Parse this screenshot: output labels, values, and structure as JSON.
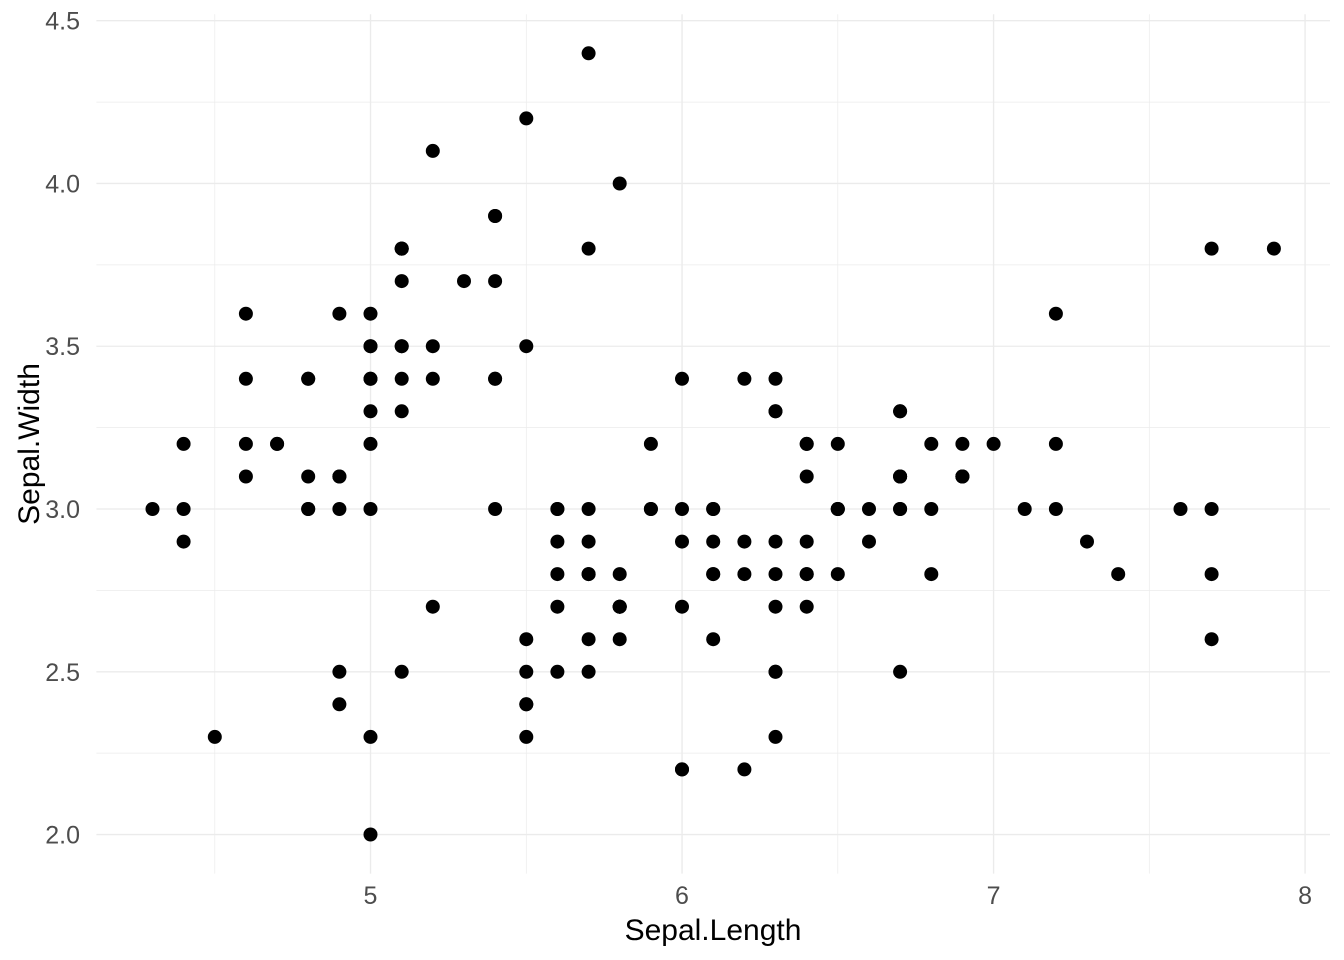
{
  "chart_data": {
    "type": "scatter",
    "title": "",
    "xlabel": "Sepal.Length",
    "ylabel": "Sepal.Width",
    "xlim": [
      4.12,
      8.08
    ],
    "ylim": [
      1.88,
      4.52
    ],
    "x_major_ticks": [
      5,
      6,
      7,
      8
    ],
    "x_tick_labels": [
      "5",
      "6",
      "7",
      "8"
    ],
    "y_major_ticks": [
      2.0,
      2.5,
      3.0,
      3.5,
      4.0,
      4.5
    ],
    "y_tick_labels": [
      "2.0",
      "2.5",
      "3.0",
      "3.5",
      "4.0",
      "4.5"
    ],
    "x_minor_ticks": [
      4.5,
      5.5,
      6.5,
      7.5
    ],
    "y_minor_ticks": [
      2.25,
      2.75,
      3.25,
      3.75,
      4.25
    ],
    "grid": "major+minor",
    "legend": "none",
    "style": {
      "background": "#FFFFFF",
      "grid_color": "#EBEBEB",
      "point_color": "#000000",
      "point_radius": 7,
      "axis_text_color": "#4D4D4D",
      "axis_title_color": "#000000"
    },
    "points": [
      [
        5.1,
        3.5
      ],
      [
        4.9,
        3.0
      ],
      [
        4.7,
        3.2
      ],
      [
        4.6,
        3.1
      ],
      [
        5.0,
        3.6
      ],
      [
        5.4,
        3.9
      ],
      [
        4.6,
        3.4
      ],
      [
        5.0,
        3.4
      ],
      [
        4.4,
        2.9
      ],
      [
        4.9,
        3.1
      ],
      [
        5.4,
        3.7
      ],
      [
        4.8,
        3.4
      ],
      [
        4.8,
        3.0
      ],
      [
        4.3,
        3.0
      ],
      [
        5.8,
        4.0
      ],
      [
        5.7,
        4.4
      ],
      [
        5.4,
        3.9
      ],
      [
        5.1,
        3.5
      ],
      [
        5.7,
        3.8
      ],
      [
        5.1,
        3.8
      ],
      [
        5.4,
        3.4
      ],
      [
        5.1,
        3.7
      ],
      [
        4.6,
        3.6
      ],
      [
        5.1,
        3.3
      ],
      [
        4.8,
        3.4
      ],
      [
        5.0,
        3.0
      ],
      [
        5.0,
        3.4
      ],
      [
        5.2,
        3.5
      ],
      [
        5.2,
        3.4
      ],
      [
        4.7,
        3.2
      ],
      [
        4.8,
        3.1
      ],
      [
        5.4,
        3.4
      ],
      [
        5.2,
        4.1
      ],
      [
        5.5,
        4.2
      ],
      [
        4.9,
        3.1
      ],
      [
        5.0,
        3.2
      ],
      [
        5.5,
        3.5
      ],
      [
        4.9,
        3.6
      ],
      [
        4.4,
        3.0
      ],
      [
        5.1,
        3.4
      ],
      [
        5.0,
        3.5
      ],
      [
        4.5,
        2.3
      ],
      [
        4.4,
        3.2
      ],
      [
        5.0,
        3.5
      ],
      [
        5.1,
        3.8
      ],
      [
        4.8,
        3.0
      ],
      [
        5.1,
        3.8
      ],
      [
        4.6,
        3.2
      ],
      [
        5.3,
        3.7
      ],
      [
        5.0,
        3.3
      ],
      [
        7.0,
        3.2
      ],
      [
        6.4,
        3.2
      ],
      [
        6.9,
        3.1
      ],
      [
        5.5,
        2.3
      ],
      [
        6.5,
        2.8
      ],
      [
        5.7,
        2.8
      ],
      [
        6.3,
        3.3
      ],
      [
        4.9,
        2.4
      ],
      [
        6.6,
        2.9
      ],
      [
        5.2,
        2.7
      ],
      [
        5.0,
        2.0
      ],
      [
        5.9,
        3.0
      ],
      [
        6.0,
        2.2
      ],
      [
        6.1,
        2.9
      ],
      [
        5.6,
        2.9
      ],
      [
        6.7,
        3.1
      ],
      [
        5.6,
        3.0
      ],
      [
        5.8,
        2.7
      ],
      [
        6.2,
        2.2
      ],
      [
        5.6,
        2.5
      ],
      [
        5.9,
        3.2
      ],
      [
        6.1,
        2.8
      ],
      [
        6.3,
        2.5
      ],
      [
        6.1,
        2.8
      ],
      [
        6.4,
        2.9
      ],
      [
        6.6,
        3.0
      ],
      [
        6.8,
        2.8
      ],
      [
        6.7,
        3.0
      ],
      [
        6.0,
        2.9
      ],
      [
        5.7,
        2.6
      ],
      [
        5.5,
        2.4
      ],
      [
        5.5,
        2.4
      ],
      [
        5.8,
        2.7
      ],
      [
        6.0,
        2.7
      ],
      [
        5.4,
        3.0
      ],
      [
        6.0,
        3.4
      ],
      [
        6.7,
        3.1
      ],
      [
        6.3,
        2.3
      ],
      [
        5.6,
        3.0
      ],
      [
        5.5,
        2.5
      ],
      [
        5.5,
        2.6
      ],
      [
        6.1,
        3.0
      ],
      [
        5.8,
        2.6
      ],
      [
        5.0,
        2.3
      ],
      [
        5.6,
        2.7
      ],
      [
        5.7,
        3.0
      ],
      [
        5.7,
        2.9
      ],
      [
        6.2,
        2.9
      ],
      [
        5.1,
        2.5
      ],
      [
        5.7,
        2.8
      ],
      [
        6.3,
        3.3
      ],
      [
        5.8,
        2.7
      ],
      [
        7.1,
        3.0
      ],
      [
        6.3,
        2.9
      ],
      [
        6.5,
        3.0
      ],
      [
        7.6,
        3.0
      ],
      [
        4.9,
        2.5
      ],
      [
        7.3,
        2.9
      ],
      [
        6.7,
        2.5
      ],
      [
        7.2,
        3.6
      ],
      [
        6.5,
        3.2
      ],
      [
        6.4,
        2.7
      ],
      [
        6.8,
        3.0
      ],
      [
        5.7,
        2.5
      ],
      [
        5.8,
        2.8
      ],
      [
        6.4,
        3.2
      ],
      [
        6.5,
        3.0
      ],
      [
        7.7,
        3.8
      ],
      [
        7.7,
        2.6
      ],
      [
        6.0,
        2.2
      ],
      [
        6.9,
        3.2
      ],
      [
        5.6,
        2.8
      ],
      [
        7.7,
        2.8
      ],
      [
        6.3,
        2.7
      ],
      [
        6.7,
        3.3
      ],
      [
        7.2,
        3.2
      ],
      [
        6.2,
        2.8
      ],
      [
        6.1,
        3.0
      ],
      [
        6.4,
        2.8
      ],
      [
        7.2,
        3.0
      ],
      [
        7.4,
        2.8
      ],
      [
        7.9,
        3.8
      ],
      [
        6.4,
        2.8
      ],
      [
        6.3,
        2.8
      ],
      [
        6.1,
        2.6
      ],
      [
        7.7,
        3.0
      ],
      [
        6.3,
        3.4
      ],
      [
        6.4,
        3.1
      ],
      [
        6.0,
        3.0
      ],
      [
        6.9,
        3.1
      ],
      [
        6.7,
        3.1
      ],
      [
        6.9,
        3.1
      ],
      [
        5.8,
        2.7
      ],
      [
        6.8,
        3.2
      ],
      [
        6.7,
        3.3
      ],
      [
        6.7,
        3.0
      ],
      [
        6.3,
        2.5
      ],
      [
        6.5,
        3.0
      ],
      [
        6.2,
        3.4
      ],
      [
        5.9,
        3.0
      ]
    ]
  }
}
